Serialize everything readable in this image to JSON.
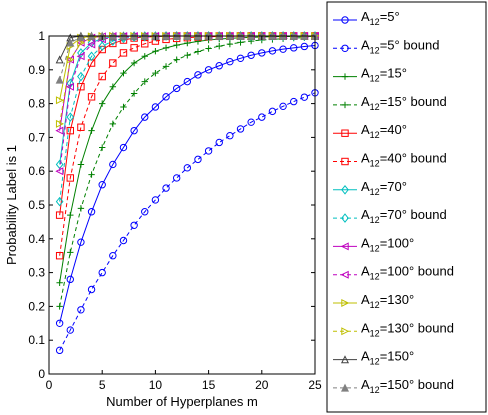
{
  "chart_data": {
    "type": "line",
    "xlabel": "Number of Hyperplanes m",
    "ylabel": "Probability Label is 1",
    "xlim": [
      0,
      25
    ],
    "ylim": [
      0,
      1
    ],
    "xticks": [
      0,
      5,
      10,
      15,
      20,
      25
    ],
    "yticks": [
      0,
      0.1,
      0.2,
      0.3,
      0.4,
      0.5,
      0.6,
      0.7,
      0.8,
      0.9,
      1
    ],
    "xtick_labels": [
      "0",
      "5",
      "10",
      "15",
      "20",
      "25"
    ],
    "ytick_labels": [
      "0",
      "0.1",
      "0.2",
      "0.3",
      "0.4",
      "0.5",
      "0.6",
      "0.7",
      "0.8",
      "0.9",
      "1"
    ],
    "grid": false,
    "legend_position": "outside-right",
    "x": [
      1,
      2,
      3,
      4,
      5,
      6,
      7,
      8,
      9,
      10,
      11,
      12,
      13,
      14,
      15,
      16,
      17,
      18,
      19,
      20,
      21,
      22,
      23,
      24,
      25
    ],
    "series": [
      {
        "name": "A12=5°",
        "legend_main": "A",
        "legend_sub": "12",
        "legend_rest": "=5°",
        "color": "#0000ff",
        "marker": "circle",
        "dashed": false,
        "values": [
          0.15,
          0.28,
          0.39,
          0.48,
          0.56,
          0.62,
          0.67,
          0.72,
          0.76,
          0.79,
          0.82,
          0.845,
          0.865,
          0.885,
          0.9,
          0.912,
          0.924,
          0.934,
          0.943,
          0.95,
          0.956,
          0.961,
          0.965,
          0.969,
          0.972
        ]
      },
      {
        "name": "A12=5° bound",
        "legend_main": "A",
        "legend_sub": "12",
        "legend_rest": "=5° bound",
        "color": "#0000ff",
        "marker": "circle",
        "dashed": true,
        "values": [
          0.07,
          0.13,
          0.19,
          0.25,
          0.3,
          0.35,
          0.395,
          0.44,
          0.48,
          0.515,
          0.55,
          0.58,
          0.61,
          0.635,
          0.66,
          0.685,
          0.705,
          0.725,
          0.745,
          0.76,
          0.777,
          0.792,
          0.806,
          0.819,
          0.832
        ]
      },
      {
        "name": "A12=15°",
        "legend_main": "A",
        "legend_sub": "12",
        "legend_rest": "=15°",
        "color": "#008000",
        "marker": "plus",
        "dashed": false,
        "values": [
          0.27,
          0.47,
          0.62,
          0.72,
          0.8,
          0.85,
          0.89,
          0.92,
          0.94,
          0.955,
          0.965,
          0.973,
          0.979,
          0.984,
          0.988,
          0.991,
          0.993,
          0.995,
          0.996,
          0.997,
          0.998,
          0.998,
          0.999,
          0.999,
          0.999
        ]
      },
      {
        "name": "A12=15° bound",
        "legend_main": "A",
        "legend_sub": "12",
        "legend_rest": "=15° bound",
        "color": "#008000",
        "marker": "plus",
        "dashed": true,
        "values": [
          0.2,
          0.36,
          0.49,
          0.59,
          0.67,
          0.74,
          0.79,
          0.83,
          0.865,
          0.89,
          0.91,
          0.93,
          0.943,
          0.954,
          0.963,
          0.97,
          0.976,
          0.981,
          0.985,
          0.988,
          0.99,
          0.992,
          0.994,
          0.995,
          0.996
        ]
      },
      {
        "name": "A12=40°",
        "legend_main": "A",
        "legend_sub": "12",
        "legend_rest": "=40°",
        "color": "#ff0000",
        "marker": "square",
        "dashed": false,
        "values": [
          0.47,
          0.72,
          0.85,
          0.92,
          0.96,
          0.978,
          0.988,
          0.994,
          0.997,
          0.998,
          0.999,
          1,
          1,
          1,
          1,
          1,
          1,
          1,
          1,
          1,
          1,
          1,
          1,
          1,
          1
        ]
      },
      {
        "name": "A12=40° bound",
        "legend_main": "A",
        "legend_sub": "12",
        "legend_rest": "=40° bound",
        "color": "#ff0000",
        "marker": "square",
        "dashed": true,
        "values": [
          0.35,
          0.58,
          0.73,
          0.82,
          0.88,
          0.92,
          0.95,
          0.965,
          0.977,
          0.985,
          0.99,
          0.993,
          0.995,
          0.997,
          0.998,
          0.999,
          0.999,
          1,
          1,
          1,
          1,
          1,
          1,
          1,
          1
        ]
      },
      {
        "name": "A12=70°",
        "legend_main": "A",
        "legend_sub": "12",
        "legend_rest": "=70°",
        "color": "#00bfbf",
        "marker": "diamond",
        "dashed": false,
        "values": [
          0.62,
          0.86,
          0.95,
          0.98,
          0.993,
          0.997,
          0.999,
          1,
          1,
          1,
          1,
          1,
          1,
          1,
          1,
          1,
          1,
          1,
          1,
          1,
          1,
          1,
          1,
          1,
          1
        ]
      },
      {
        "name": "A12=70° bound",
        "legend_main": "A",
        "legend_sub": "12",
        "legend_rest": "=70° bound",
        "color": "#00bfbf",
        "marker": "diamond",
        "dashed": true,
        "values": [
          0.51,
          0.76,
          0.88,
          0.94,
          0.97,
          0.985,
          0.993,
          0.997,
          0.998,
          0.999,
          1,
          1,
          1,
          1,
          1,
          1,
          1,
          1,
          1,
          1,
          1,
          1,
          1,
          1,
          1
        ]
      },
      {
        "name": "A12=100°",
        "legend_main": "A",
        "legend_sub": "12",
        "legend_rest": "=100°",
        "color": "#bf00bf",
        "marker": "triangle-left",
        "dashed": false,
        "values": [
          0.72,
          0.93,
          0.98,
          0.995,
          0.999,
          1,
          1,
          1,
          1,
          1,
          1,
          1,
          1,
          1,
          1,
          1,
          1,
          1,
          1,
          1,
          1,
          1,
          1,
          1,
          1
        ]
      },
      {
        "name": "A12=100° bound",
        "legend_main": "A",
        "legend_sub": "12",
        "legend_rest": "=100° bound",
        "color": "#bf00bf",
        "marker": "triangle-left",
        "dashed": true,
        "values": [
          0.6,
          0.85,
          0.94,
          0.975,
          0.99,
          0.996,
          0.998,
          0.999,
          1,
          1,
          1,
          1,
          1,
          1,
          1,
          1,
          1,
          1,
          1,
          1,
          1,
          1,
          1,
          1,
          1
        ]
      },
      {
        "name": "A12=130°",
        "legend_main": "A",
        "legend_sub": "12",
        "legend_rest": "=130°",
        "color": "#bfbf00",
        "marker": "triangle-right",
        "dashed": false,
        "values": [
          0.81,
          0.97,
          0.995,
          0.999,
          1,
          1,
          1,
          1,
          1,
          1,
          1,
          1,
          1,
          1,
          1,
          1,
          1,
          1,
          1,
          1,
          1,
          1,
          1,
          1,
          1
        ]
      },
      {
        "name": "A12=130° bound",
        "legend_main": "A",
        "legend_sub": "12",
        "legend_rest": "=130° bound",
        "color": "#bfbf00",
        "marker": "triangle-right",
        "dashed": true,
        "values": [
          0.74,
          0.93,
          0.98,
          0.995,
          0.999,
          1,
          1,
          1,
          1,
          1,
          1,
          1,
          1,
          1,
          1,
          1,
          1,
          1,
          1,
          1,
          1,
          1,
          1,
          1,
          1
        ]
      },
      {
        "name": "A12=150°",
        "legend_main": "A",
        "legend_sub": "12",
        "legend_rest": "=150°",
        "color": "#404040",
        "marker": "triangle-up",
        "dashed": false,
        "values": [
          0.93,
          0.995,
          1,
          1,
          1,
          1,
          1,
          1,
          1,
          1,
          1,
          1,
          1,
          1,
          1,
          1,
          1,
          1,
          1,
          1,
          1,
          1,
          1,
          1,
          1
        ]
      },
      {
        "name": "A12=150° bound",
        "legend_main": "A",
        "legend_sub": "12",
        "legend_rest": "=150° bound",
        "color": "#808080",
        "marker": "triangle-up-filled",
        "dashed": true,
        "values": [
          0.87,
          0.98,
          0.997,
          1,
          1,
          1,
          1,
          1,
          1,
          1,
          1,
          1,
          1,
          1,
          1,
          1,
          1,
          1,
          1,
          1,
          1,
          1,
          1,
          1,
          1
        ]
      }
    ]
  }
}
